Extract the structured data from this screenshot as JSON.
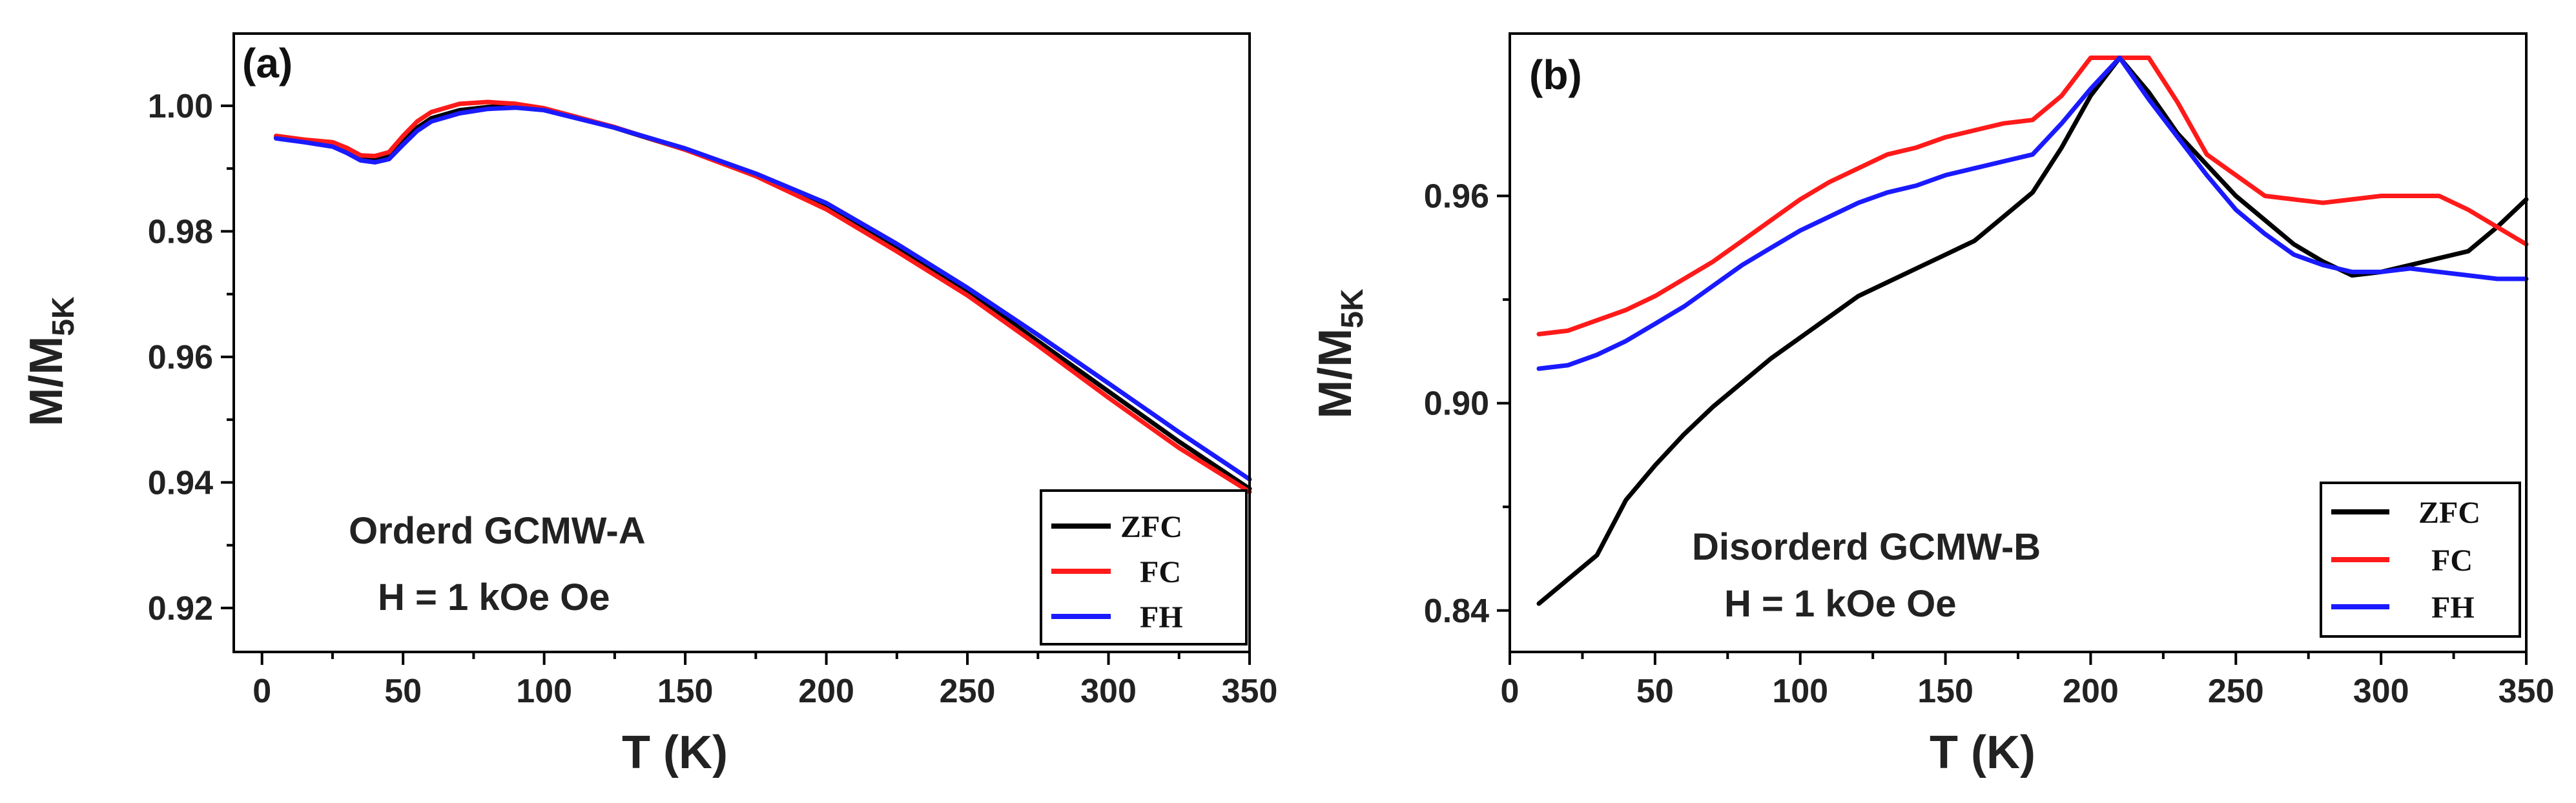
{
  "chart_data": [
    {
      "type": "line",
      "panel_label": "(a)",
      "xlabel": "T (K)",
      "ylabel_main": "M/M",
      "ylabel_sub": "5K",
      "xlim": [
        -10,
        350
      ],
      "ylim": [
        0.913,
        1.0115
      ],
      "xticks": [
        0,
        50,
        100,
        150,
        200,
        250,
        300,
        350
      ],
      "yticks": [
        0.92,
        0.94,
        0.96,
        0.98,
        1.0
      ],
      "ytick_labels": [
        "0.92",
        "0.94",
        "0.96",
        "0.98",
        "1.00"
      ],
      "annotations": [
        "Orderd GCMW-A",
        "H = 1 kOe Oe"
      ],
      "legend_position": "bottom-right",
      "series": [
        {
          "name": "ZFC",
          "color": "#000000",
          "x": [
            5,
            15,
            25,
            30,
            35,
            40,
            45,
            50,
            55,
            60,
            70,
            80,
            90,
            100,
            125,
            150,
            175,
            200,
            225,
            250,
            275,
            300,
            325,
            350
          ],
          "y": [
            0.995,
            0.9943,
            0.9938,
            0.993,
            0.9918,
            0.9917,
            0.9922,
            0.9945,
            0.9965,
            0.998,
            0.9993,
            0.9998,
            1.0,
            0.9995,
            0.9965,
            0.993,
            0.989,
            0.984,
            0.9775,
            0.9705,
            0.9625,
            0.9545,
            0.9465,
            0.939
          ]
        },
        {
          "name": "FC",
          "color": "#ff1a1a",
          "x": [
            5,
            15,
            25,
            30,
            35,
            40,
            45,
            50,
            55,
            60,
            70,
            80,
            90,
            100,
            125,
            150,
            175,
            200,
            225,
            250,
            275,
            300,
            325,
            350
          ],
          "y": [
            0.9952,
            0.9946,
            0.9942,
            0.9933,
            0.9921,
            0.992,
            0.9926,
            0.9952,
            0.9975,
            0.999,
            1.0003,
            1.0006,
            1.0003,
            0.9996,
            0.9966,
            0.993,
            0.9888,
            0.9835,
            0.9768,
            0.9698,
            0.9618,
            0.9535,
            0.9455,
            0.9385
          ]
        },
        {
          "name": "FH",
          "color": "#1a1aff",
          "x": [
            5,
            15,
            25,
            30,
            35,
            40,
            45,
            50,
            55,
            60,
            70,
            80,
            90,
            100,
            125,
            150,
            175,
            200,
            225,
            250,
            275,
            300,
            325,
            350
          ],
          "y": [
            0.9948,
            0.9942,
            0.9935,
            0.9925,
            0.9913,
            0.991,
            0.9915,
            0.9938,
            0.996,
            0.9975,
            0.9988,
            0.9995,
            0.9997,
            0.9993,
            0.9965,
            0.9932,
            0.9892,
            0.9845,
            0.978,
            0.971,
            0.9635,
            0.9558,
            0.948,
            0.9405
          ]
        }
      ]
    },
    {
      "type": "line",
      "panel_label": "(b)",
      "xlabel": "T (K)",
      "ylabel_main": "M/M",
      "ylabel_sub": "5K",
      "xlim": [
        0,
        350
      ],
      "ylim": [
        0.828,
        1.007
      ],
      "xticks": [
        0,
        50,
        100,
        150,
        200,
        250,
        300,
        350
      ],
      "yticks": [
        0.84,
        0.9,
        0.96
      ],
      "ytick_labels": [
        "0.84",
        "0.90",
        "0.96"
      ],
      "annotations": [
        "Disorderd GCMW-B",
        "H = 1 kOe Oe"
      ],
      "legend_position": "bottom-right",
      "series": [
        {
          "name": "ZFC",
          "color": "#000000",
          "x": [
            10,
            20,
            30,
            40,
            50,
            60,
            70,
            80,
            90,
            100,
            110,
            120,
            130,
            140,
            150,
            160,
            170,
            180,
            190,
            200,
            210,
            220,
            230,
            240,
            250,
            260,
            270,
            280,
            290,
            300,
            310,
            320,
            330,
            340,
            350
          ],
          "y": [
            0.842,
            0.849,
            0.856,
            0.872,
            0.882,
            0.891,
            0.899,
            0.906,
            0.913,
            0.919,
            0.925,
            0.931,
            0.935,
            0.939,
            0.943,
            0.947,
            0.954,
            0.961,
            0.974,
            0.989,
            1.0,
            0.99,
            0.978,
            0.969,
            0.96,
            0.953,
            0.946,
            0.941,
            0.937,
            0.938,
            0.94,
            0.942,
            0.944,
            0.951,
            0.959
          ]
        },
        {
          "name": "FC",
          "color": "#ff1a1a",
          "x": [
            10,
            20,
            30,
            40,
            50,
            60,
            70,
            80,
            90,
            100,
            110,
            120,
            130,
            140,
            150,
            160,
            170,
            180,
            190,
            200,
            210,
            220,
            230,
            240,
            250,
            260,
            270,
            280,
            290,
            300,
            310,
            320,
            330,
            340,
            350
          ],
          "y": [
            0.92,
            0.921,
            0.924,
            0.927,
            0.931,
            0.936,
            0.941,
            0.947,
            0.953,
            0.959,
            0.964,
            0.968,
            0.972,
            0.974,
            0.977,
            0.979,
            0.981,
            0.982,
            0.989,
            1.0,
            1.0,
            1.0,
            0.987,
            0.972,
            0.966,
            0.96,
            0.959,
            0.958,
            0.959,
            0.96,
            0.96,
            0.96,
            0.956,
            0.951,
            0.946
          ]
        },
        {
          "name": "FH",
          "color": "#1a1aff",
          "x": [
            10,
            20,
            30,
            40,
            50,
            60,
            70,
            80,
            90,
            100,
            110,
            120,
            130,
            140,
            150,
            160,
            170,
            180,
            190,
            200,
            210,
            220,
            230,
            240,
            250,
            260,
            270,
            280,
            290,
            300,
            310,
            320,
            330,
            340,
            350
          ],
          "y": [
            0.91,
            0.911,
            0.914,
            0.918,
            0.923,
            0.928,
            0.934,
            0.94,
            0.945,
            0.95,
            0.954,
            0.958,
            0.961,
            0.963,
            0.966,
            0.968,
            0.97,
            0.972,
            0.981,
            0.991,
            1.0,
            0.988,
            0.977,
            0.966,
            0.956,
            0.949,
            0.943,
            0.94,
            0.938,
            0.938,
            0.939,
            0.938,
            0.937,
            0.936,
            0.936
          ]
        }
      ]
    }
  ]
}
